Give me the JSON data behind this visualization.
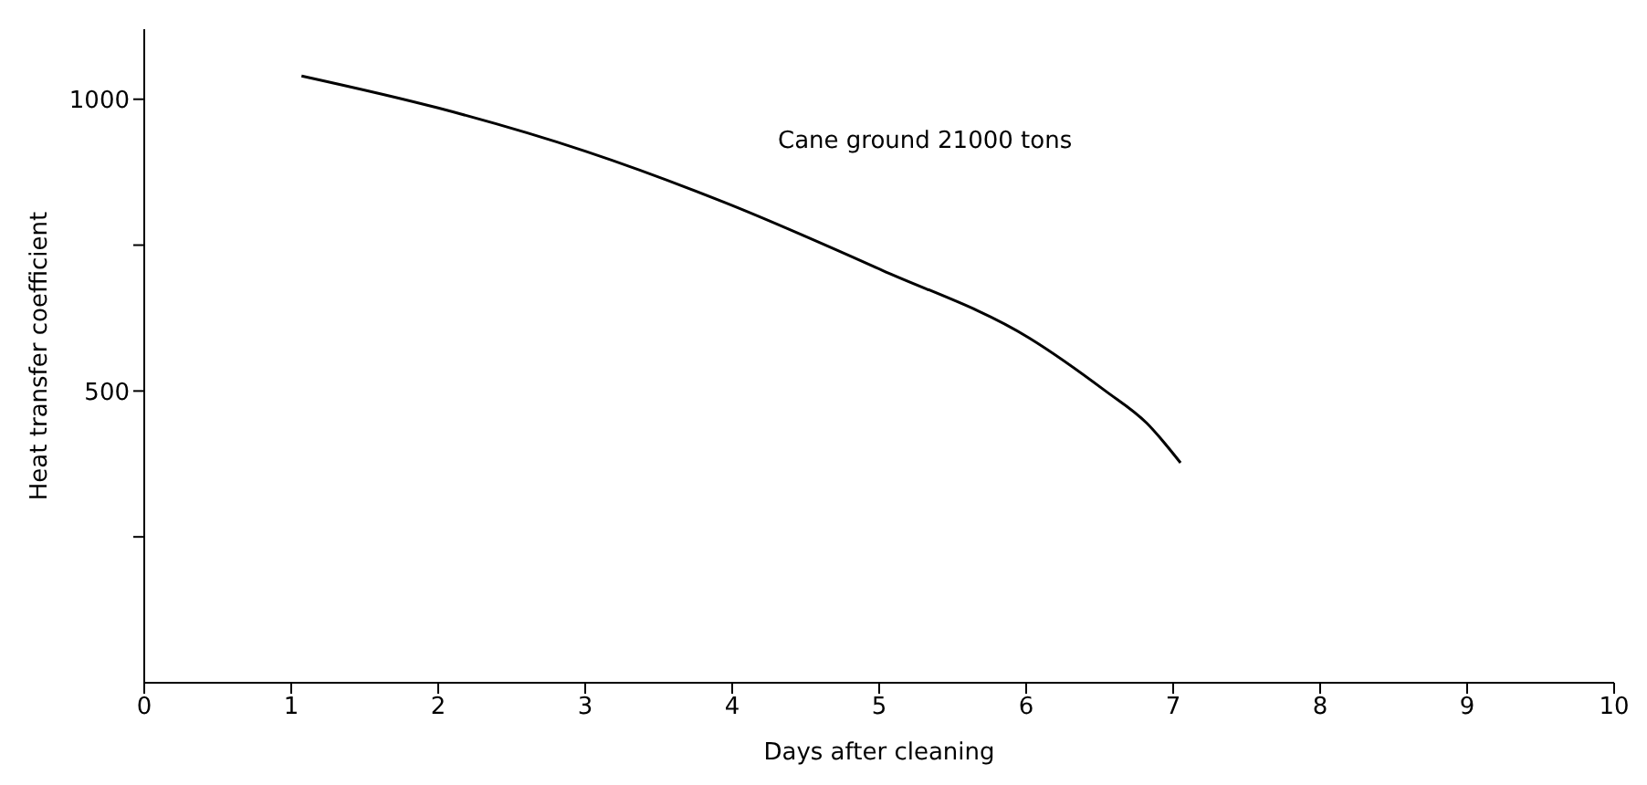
{
  "chart_data": {
    "type": "line",
    "xlabel": "Days after cleaning",
    "ylabel": "Heat transfer coefficient",
    "annotations": [
      "Cane ground 21000 tons"
    ],
    "xlim": [
      0,
      10
    ],
    "xticks": [
      0,
      1,
      2,
      3,
      4,
      5,
      6,
      7,
      8,
      9,
      10
    ],
    "ylim": [
      0,
      1120
    ],
    "yticks": [
      {
        "value": 250,
        "label": null
      },
      500,
      {
        "value": 750,
        "label": null
      },
      1000
    ],
    "grid": false,
    "legend": false,
    "marker": "none",
    "line_style": "solid",
    "series": [
      {
        "color": "#000000",
        "x": [
          1.07,
          2,
          3,
          3.95,
          5.02,
          6.02,
          6.54,
          6.82,
          7.05
        ],
        "values": [
          1040,
          985,
          911,
          823,
          707,
          591,
          500,
          445,
          377
        ]
      }
    ]
  }
}
